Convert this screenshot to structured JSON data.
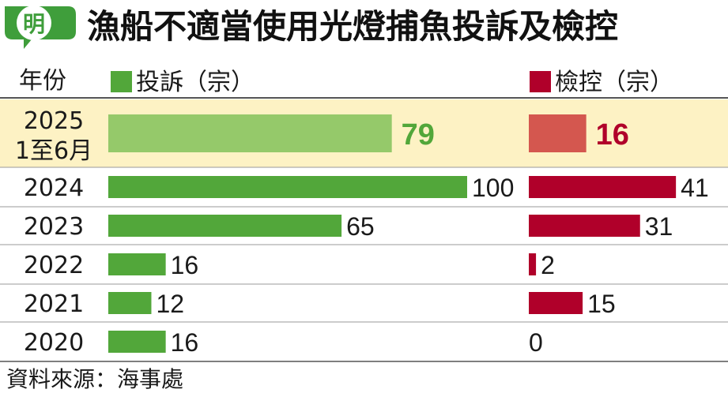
{
  "header": {
    "logo_text": "明",
    "title": "漁船不適當使用光燈捕魚投訴及檢控"
  },
  "chart_data": {
    "type": "bar",
    "column_header": "年份",
    "categories": [
      "2025\n1至6月",
      "2024",
      "2023",
      "2022",
      "2021",
      "2020"
    ],
    "highlight_index": 0,
    "series": [
      {
        "name": "投訴（宗）",
        "values": [
          79,
          100,
          65,
          16,
          12,
          16
        ]
      },
      {
        "name": "檢控（宗）",
        "values": [
          16,
          41,
          31,
          2,
          15,
          0
        ]
      }
    ]
  },
  "colors": {
    "complaint": "#52a73a",
    "complaint_highlight": "#95c96a",
    "prosecution": "#b0002a",
    "prosecution_highlight": "#d4574f",
    "highlight_bg": "#fdf2c4",
    "logo_green": "#3f9e3b"
  },
  "footer": {
    "source": "資料來源：海事處"
  }
}
